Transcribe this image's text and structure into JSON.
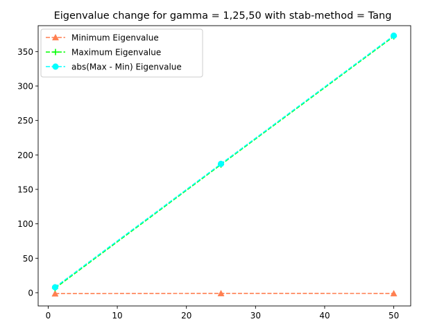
{
  "chart_data": {
    "type": "line",
    "title": "Eigenvalue change for gamma = 1,25,50 with stab-method = Tang",
    "xlabel": "",
    "ylabel": "",
    "x": [
      1,
      25,
      50
    ],
    "xlim": [
      -1.45,
      52.45
    ],
    "ylim": [
      -19.2,
      387.6
    ],
    "xticks": [
      0,
      10,
      20,
      30,
      40,
      50
    ],
    "yticks": [
      0,
      50,
      100,
      150,
      200,
      250,
      300,
      350
    ],
    "grid": false,
    "legend_position": "upper-left",
    "series": [
      {
        "name": "Minimum Eigenvalue",
        "values": [
          -1.3,
          -1.0,
          -1.1
        ],
        "color": "#ff7f50",
        "marker": "triangle",
        "linestyle": "dashed"
      },
      {
        "name": "Maximum Eigenvalue",
        "values": [
          6.6,
          186.0,
          372.0
        ],
        "color": "#00ff00",
        "marker": "plus",
        "linestyle": "dashed"
      },
      {
        "name": "abs(Max - Min) Eigenvalue",
        "values": [
          7.9,
          187.0,
          373.1
        ],
        "color": "#00ffff",
        "marker": "circle",
        "linestyle": "dashed"
      }
    ]
  }
}
